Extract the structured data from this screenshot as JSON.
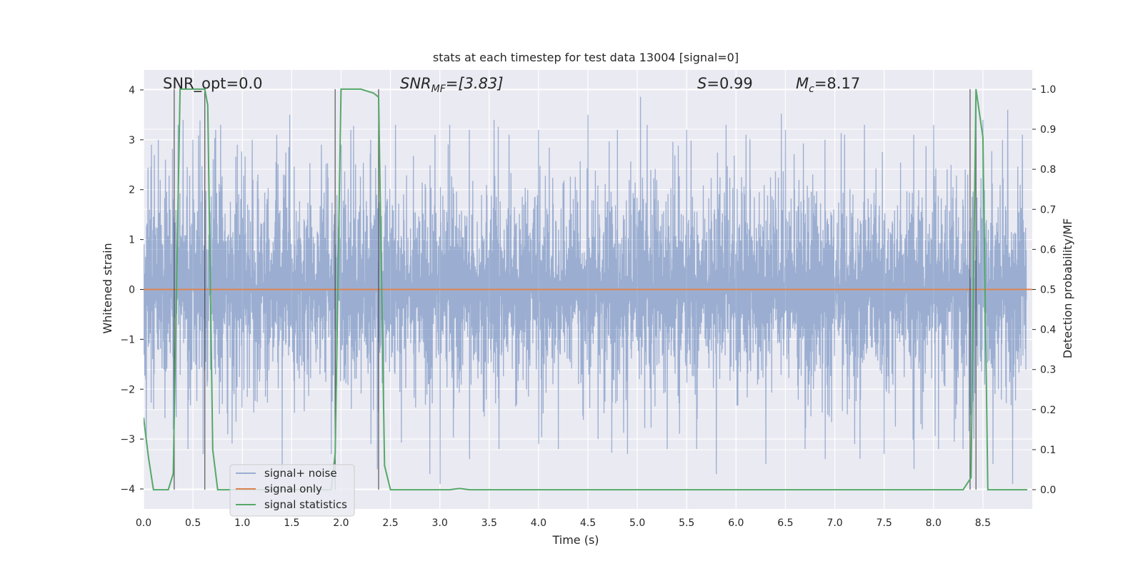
{
  "chart_data": {
    "type": "line",
    "title": "stats at each timestep for test data 13004 [signal=0]",
    "xlabel": "Time (s)",
    "ylabel": "Whitened strain",
    "ylabel_right": "Detection probability/MF",
    "xlim": [
      0,
      9.0
    ],
    "ylim": [
      -4.4,
      4.4
    ],
    "ylim_right": [
      -0.048,
      1.048
    ],
    "x_ticks": [
      "0.0",
      "0.5",
      "1.0",
      "1.5",
      "2.0",
      "2.5",
      "3.0",
      "3.5",
      "4.0",
      "4.5",
      "5.0",
      "5.5",
      "6.0",
      "6.5",
      "7.0",
      "7.5",
      "8.0",
      "8.5"
    ],
    "y_ticks": [
      "4",
      "3",
      "2",
      "1",
      "0",
      "−1",
      "−2",
      "−3",
      "−4"
    ],
    "y_ticks_right": [
      "1.0",
      "0.9",
      "0.8",
      "0.7",
      "0.6",
      "0.5",
      "0.4",
      "0.3",
      "0.2",
      "0.1",
      "0.0"
    ],
    "grid": true,
    "legend_position": "lower-left",
    "annotations": {
      "snr_opt": "SNR_opt=0.0",
      "snr_mf_main": "SNR",
      "snr_mf_sub": "MF",
      "snr_mf_value": "=[3.83]",
      "s_main": "S",
      "s_value": "=0.99",
      "mc_main": "M",
      "mc_sub": "c",
      "mc_value": "=8.17"
    },
    "series": [
      {
        "name": "signal+ noise",
        "color": "#4c72b0",
        "axis": "left",
        "description_values": "whitened noise, roughly within [-3.9, 3.7]",
        "typical_envelope": [
          -1.6,
          1.6
        ],
        "peak_x": [
          0.08,
          0.15,
          0.22,
          0.35,
          0.4,
          0.5,
          0.73,
          0.78,
          0.95,
          1.1,
          1.35,
          1.48,
          1.8,
          2.1,
          2.3,
          2.55,
          2.95,
          3.1,
          3.3,
          3.55,
          3.7,
          4.0,
          4.2,
          4.5,
          4.8,
          5.1,
          5.5,
          5.9,
          6.1,
          6.5,
          6.9,
          7.1,
          7.3,
          7.8,
          8.0,
          8.3,
          8.5,
          8.7,
          8.75,
          8.9
        ],
        "peak_y": [
          2.9,
          3.0,
          2.6,
          3.3,
          3.4,
          3.0,
          3.2,
          3.3,
          2.9,
          3.0,
          3.1,
          3.5,
          2.9,
          3.2,
          3.0,
          3.3,
          3.1,
          3.3,
          3.2,
          3.4,
          3.1,
          3.2,
          3.1,
          3.5,
          3.2,
          3.3,
          3.2,
          3.3,
          3.1,
          3.2,
          3.0,
          3.1,
          3.3,
          3.1,
          3.3,
          3.2,
          3.4,
          3.0,
          3.6,
          3.1
        ],
        "trough_x": [
          0.1,
          0.3,
          0.45,
          0.6,
          0.85,
          1.4,
          1.9,
          2.3,
          2.9,
          3.0,
          3.3,
          3.6,
          4.0,
          4.2,
          4.6,
          4.9,
          5.3,
          5.6,
          5.8,
          6.3,
          6.7,
          6.9,
          7.2,
          7.5,
          7.8,
          8.05,
          8.3,
          8.6,
          8.8
        ],
        "trough_y": [
          -2.4,
          -2.8,
          -3.2,
          -3.3,
          -2.9,
          -3.6,
          -3.3,
          -3.1,
          -3.7,
          -3.9,
          -3.4,
          -3.2,
          -3.1,
          -3.2,
          -3.0,
          -3.3,
          -3.2,
          -3.2,
          -3.7,
          -3.5,
          -3.2,
          -3.4,
          -3.1,
          -3.3,
          -3.6,
          -3.2,
          -3.2,
          -3.5,
          -3.9
        ]
      },
      {
        "name": "signal only",
        "color": "#dd8452",
        "axis": "left",
        "x": [
          0,
          9.0
        ],
        "y": [
          0,
          0
        ]
      },
      {
        "name": "signal statistics",
        "color": "#55a868",
        "axis": "right",
        "x": [
          0.0,
          0.05,
          0.1,
          0.25,
          0.3,
          0.37,
          0.42,
          0.5,
          0.62,
          0.65,
          0.7,
          0.75,
          0.8,
          1.9,
          1.94,
          2.0,
          2.2,
          2.33,
          2.38,
          2.44,
          2.5,
          3.1,
          3.2,
          3.3,
          8.3,
          8.38,
          8.43,
          8.5,
          8.55,
          8.6,
          8.95
        ],
        "y": [
          0.18,
          0.08,
          0.0,
          0.0,
          0.04,
          1.0,
          1.0,
          1.0,
          1.0,
          0.96,
          0.1,
          0.0,
          0.0,
          0.0,
          0.09,
          1.0,
          1.0,
          0.99,
          0.98,
          0.06,
          0.0,
          0.0,
          0.003,
          0.0,
          0.0,
          0.03,
          1.0,
          0.88,
          0.0,
          0.0,
          0.0
        ]
      }
    ],
    "vertical_lines_x": [
      0.31,
      0.62,
      1.94,
      2.38,
      8.37,
      8.43
    ]
  }
}
